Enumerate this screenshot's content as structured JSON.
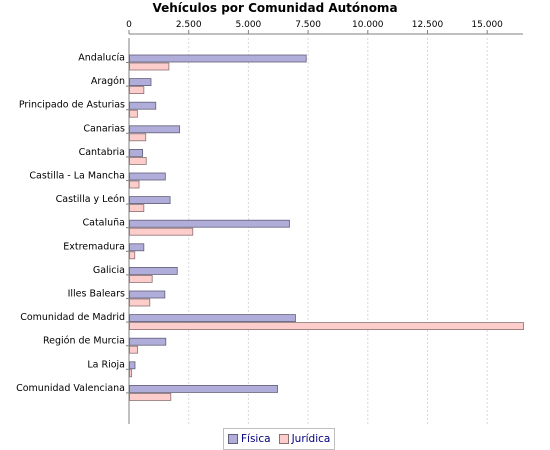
{
  "chart_data": {
    "type": "bar",
    "orientation": "horizontal",
    "title": "Vehículos por Comunidad Autónoma",
    "xlabel": "",
    "ylabel": "",
    "xlim": [
      0,
      16500
    ],
    "x_ticks": [
      0,
      2500,
      5000,
      7500,
      10000,
      12500,
      15000
    ],
    "x_tick_labels": [
      "0",
      "2.500",
      "5.000",
      "7.500",
      "10.000",
      "12.500",
      "15.000"
    ],
    "x_axis_position": "top",
    "grid": "vertical-dashed",
    "legend_position": "bottom-center",
    "categories": [
      "Andalucía",
      "Aragón",
      "Principado de Asturias",
      "Canarias",
      "Cantabria",
      "Castilla - La Mancha",
      "Castilla y León",
      "Cataluña",
      "Extremadura",
      "Galicia",
      "Illes Balears",
      "Comunidad de Madrid",
      "Región de Murcia",
      "La Rioja",
      "Comunidad Valenciana"
    ],
    "series": [
      {
        "name": "Física",
        "color": "#b1adda",
        "values": [
          7400,
          900,
          1100,
          2100,
          550,
          1500,
          1700,
          6700,
          600,
          2000,
          1480,
          6950,
          1520,
          230,
          6200
        ]
      },
      {
        "name": "Jurídica",
        "color": "#fdcdcc",
        "values": [
          1650,
          600,
          330,
          680,
          700,
          400,
          600,
          2650,
          220,
          950,
          850,
          16500,
          340,
          90,
          1730
        ]
      }
    ]
  }
}
